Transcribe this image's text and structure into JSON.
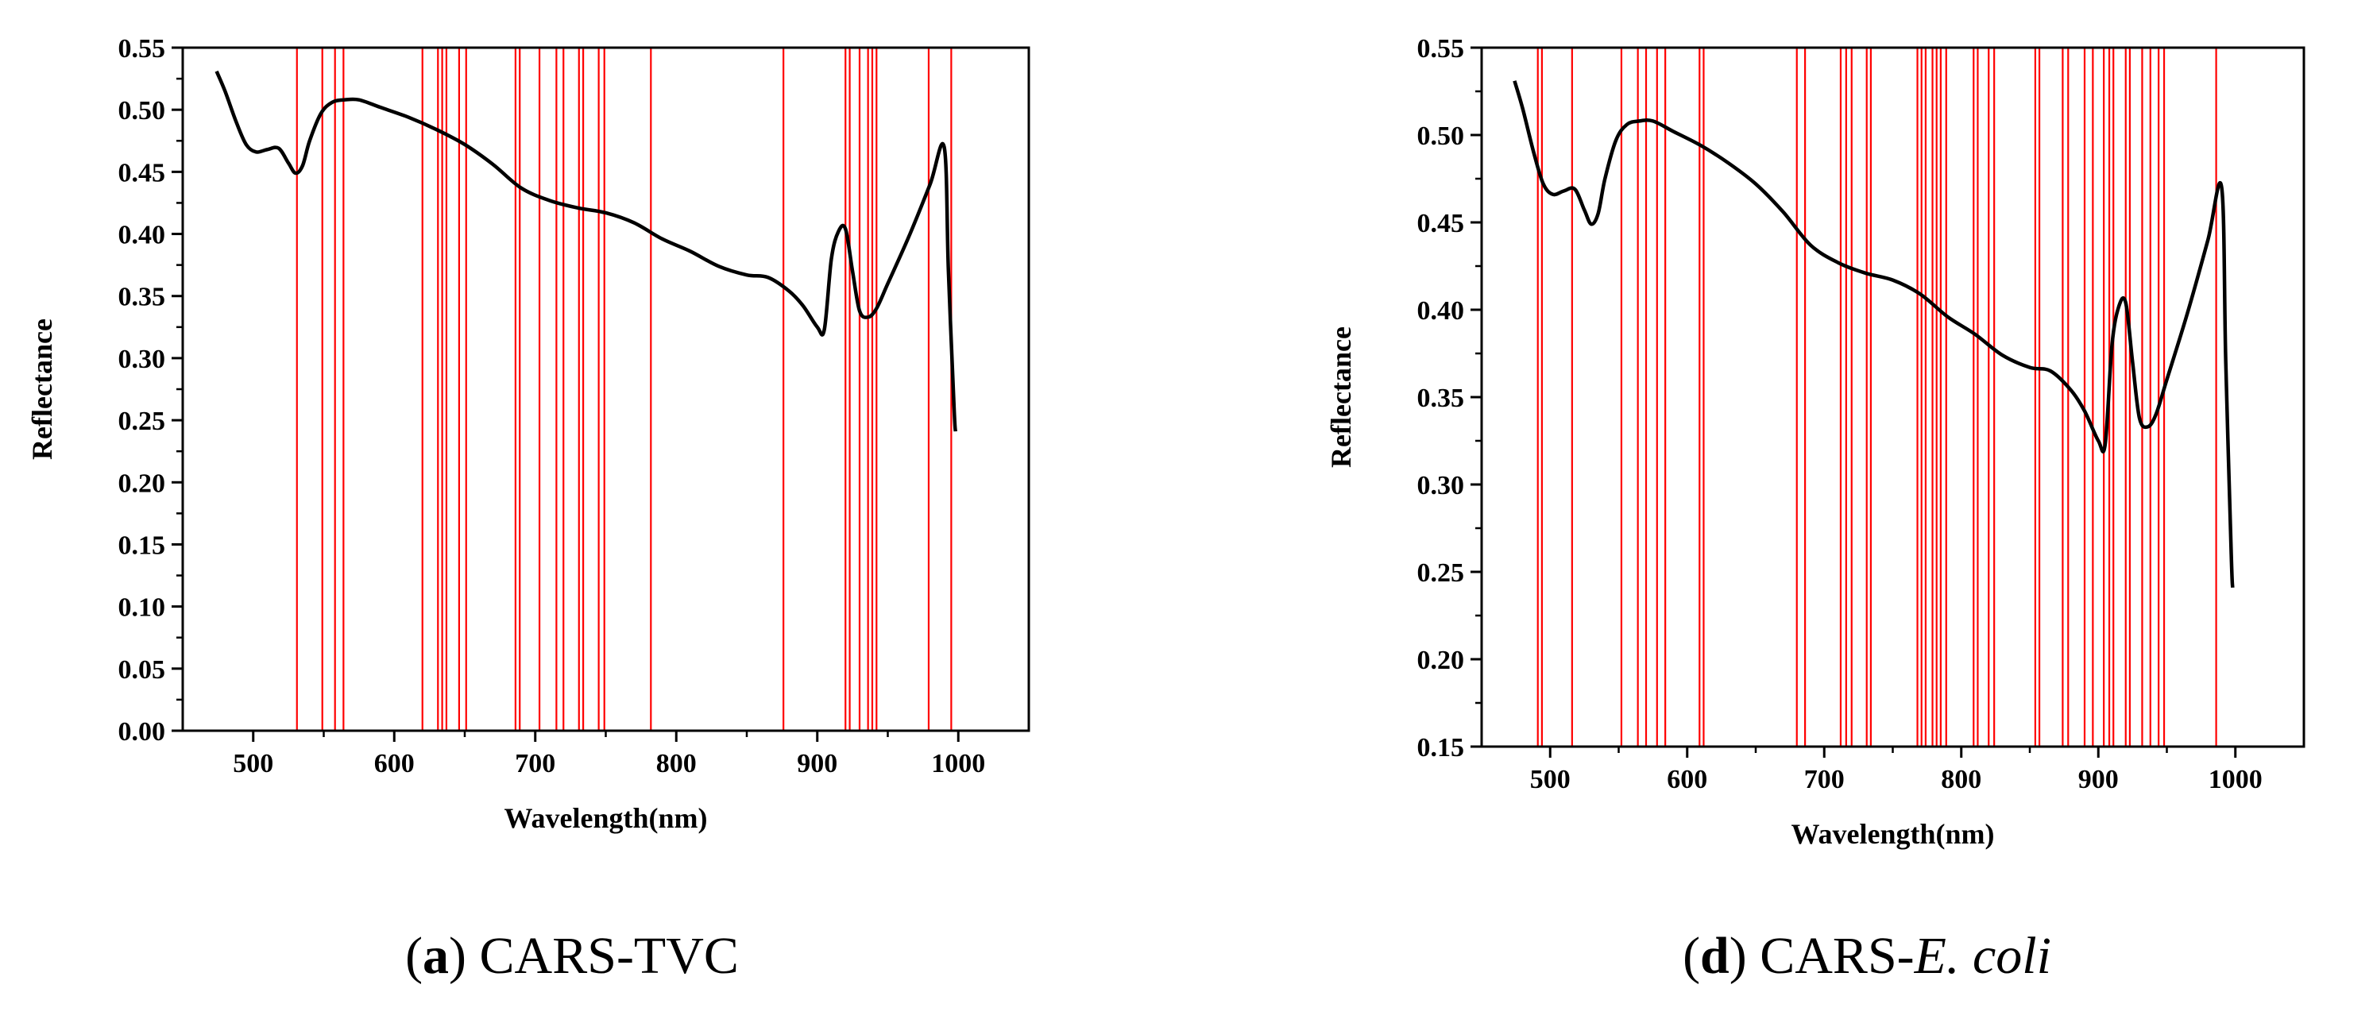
{
  "figure": {
    "panels": [
      {
        "caption": {
          "letter": "a",
          "prefix": "CARS-",
          "italic": "",
          "suffix": "TVC"
        }
      },
      {
        "caption": {
          "letter": "d",
          "prefix": "CARS-",
          "italic": "E. coli",
          "suffix": ""
        }
      }
    ]
  },
  "chart_data": [
    {
      "type": "line",
      "title": "",
      "xlabel": "Wavelength(nm)",
      "ylabel": "Reflectance",
      "xlim": [
        450,
        1050
      ],
      "ylim": [
        0.0,
        0.55
      ],
      "xticks": [
        500,
        600,
        700,
        800,
        900,
        1000
      ],
      "yticks": [
        0.0,
        0.05,
        0.1,
        0.15,
        0.2,
        0.25,
        0.3,
        0.35,
        0.4,
        0.45,
        0.5,
        0.55
      ],
      "ytick_labels": [
        "0.00",
        "0.05",
        "0.10",
        "0.15",
        "0.20",
        "0.25",
        "0.30",
        "0.35",
        "0.40",
        "0.45",
        "0.50",
        "0.55"
      ],
      "xtick_labels": [
        "500",
        "600",
        "700",
        "800",
        "900",
        "1000"
      ],
      "spectrum_color": "#000000",
      "marker_color": "#ff0000",
      "spectrum": {
        "x": [
          474,
          480,
          488,
          495,
          502,
          510,
          518,
          525,
          530,
          535,
          540,
          548,
          556,
          565,
          575,
          590,
          610,
          630,
          650,
          670,
          690,
          710,
          730,
          750,
          770,
          790,
          810,
          830,
          850,
          865,
          880,
          890,
          900,
          905,
          910,
          915,
          920,
          925,
          930,
          936,
          942,
          950,
          965,
          980,
          990,
          993,
          997,
          998
        ],
        "y": [
          0.531,
          0.515,
          0.49,
          0.472,
          0.466,
          0.468,
          0.469,
          0.457,
          0.449,
          0.455,
          0.475,
          0.497,
          0.506,
          0.508,
          0.508,
          0.502,
          0.494,
          0.484,
          0.472,
          0.456,
          0.437,
          0.427,
          0.421,
          0.417,
          0.409,
          0.396,
          0.386,
          0.374,
          0.367,
          0.365,
          0.354,
          0.342,
          0.325,
          0.323,
          0.38,
          0.402,
          0.404,
          0.37,
          0.338,
          0.333,
          0.34,
          0.36,
          0.398,
          0.44,
          0.47,
          0.37,
          0.26,
          0.241
        ]
      },
      "selected_wavelengths": [
        531,
        549,
        558,
        564,
        620,
        631,
        634,
        637,
        646,
        651,
        686,
        689,
        703,
        715,
        720,
        731,
        734,
        745,
        749,
        782,
        876,
        920,
        923,
        930,
        936,
        939,
        942,
        979,
        995
      ]
    },
    {
      "type": "line",
      "title": "",
      "xlabel": "Wavelength(nm)",
      "ylabel": "Reflectance",
      "xlim": [
        450,
        1050
      ],
      "ylim": [
        0.15,
        0.55
      ],
      "xticks": [
        500,
        600,
        700,
        800,
        900,
        1000
      ],
      "yticks": [
        0.15,
        0.2,
        0.25,
        0.3,
        0.35,
        0.4,
        0.45,
        0.5,
        0.55
      ],
      "ytick_labels": [
        "0.15",
        "0.20",
        "0.25",
        "0.30",
        "0.35",
        "0.40",
        "0.45",
        "0.50",
        "0.55"
      ],
      "xtick_labels": [
        "500",
        "600",
        "700",
        "800",
        "900",
        "1000"
      ],
      "spectrum_color": "#000000",
      "marker_color": "#ff0000",
      "spectrum": {
        "x": [
          474,
          480,
          488,
          495,
          502,
          510,
          518,
          525,
          530,
          535,
          540,
          548,
          556,
          565,
          575,
          590,
          610,
          630,
          650,
          670,
          690,
          710,
          730,
          750,
          770,
          790,
          810,
          830,
          850,
          865,
          880,
          890,
          900,
          905,
          910,
          915,
          920,
          925,
          930,
          936,
          942,
          950,
          965,
          980,
          990,
          993,
          997,
          998
        ],
        "y": [
          0.531,
          0.515,
          0.49,
          0.472,
          0.466,
          0.468,
          0.469,
          0.457,
          0.449,
          0.455,
          0.475,
          0.497,
          0.506,
          0.508,
          0.508,
          0.502,
          0.494,
          0.484,
          0.472,
          0.456,
          0.437,
          0.427,
          0.421,
          0.417,
          0.409,
          0.396,
          0.386,
          0.374,
          0.367,
          0.365,
          0.354,
          0.342,
          0.325,
          0.323,
          0.38,
          0.402,
          0.404,
          0.37,
          0.338,
          0.333,
          0.34,
          0.36,
          0.398,
          0.44,
          0.47,
          0.37,
          0.26,
          0.241
        ]
      },
      "selected_wavelengths": [
        491,
        494,
        516,
        552,
        564,
        570,
        578,
        584,
        609,
        612,
        680,
        686,
        712,
        716,
        720,
        731,
        734,
        768,
        771,
        774,
        779,
        782,
        785,
        789,
        809,
        812,
        820,
        824,
        854,
        857,
        874,
        878,
        890,
        896,
        904,
        908,
        911,
        920,
        923,
        932,
        938,
        944,
        948,
        986
      ]
    }
  ]
}
